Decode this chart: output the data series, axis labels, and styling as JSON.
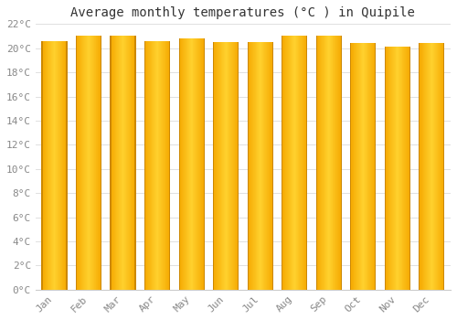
{
  "title": "Average monthly temperatures (°C ) in Quipile",
  "months": [
    "Jan",
    "Feb",
    "Mar",
    "Apr",
    "May",
    "Jun",
    "Jul",
    "Aug",
    "Sep",
    "Oct",
    "Nov",
    "Dec"
  ],
  "temperatures": [
    20.6,
    21.0,
    21.0,
    20.6,
    20.8,
    20.5,
    20.5,
    21.0,
    21.0,
    20.4,
    20.1,
    20.4
  ],
  "bar_color_center": "#FFD040",
  "bar_color_edge": "#F5A800",
  "bar_edge_color": "#CC8800",
  "ylim": [
    0,
    22
  ],
  "yticks": [
    0,
    2,
    4,
    6,
    8,
    10,
    12,
    14,
    16,
    18,
    20,
    22
  ],
  "ytick_labels": [
    "0°C",
    "2°C",
    "4°C",
    "6°C",
    "8°C",
    "10°C",
    "12°C",
    "14°C",
    "16°C",
    "18°C",
    "20°C",
    "22°C"
  ],
  "background_color": "#ffffff",
  "grid_color": "#e0e0e0",
  "title_fontsize": 10,
  "tick_fontsize": 8,
  "tick_color": "#888888",
  "title_color": "#333333"
}
